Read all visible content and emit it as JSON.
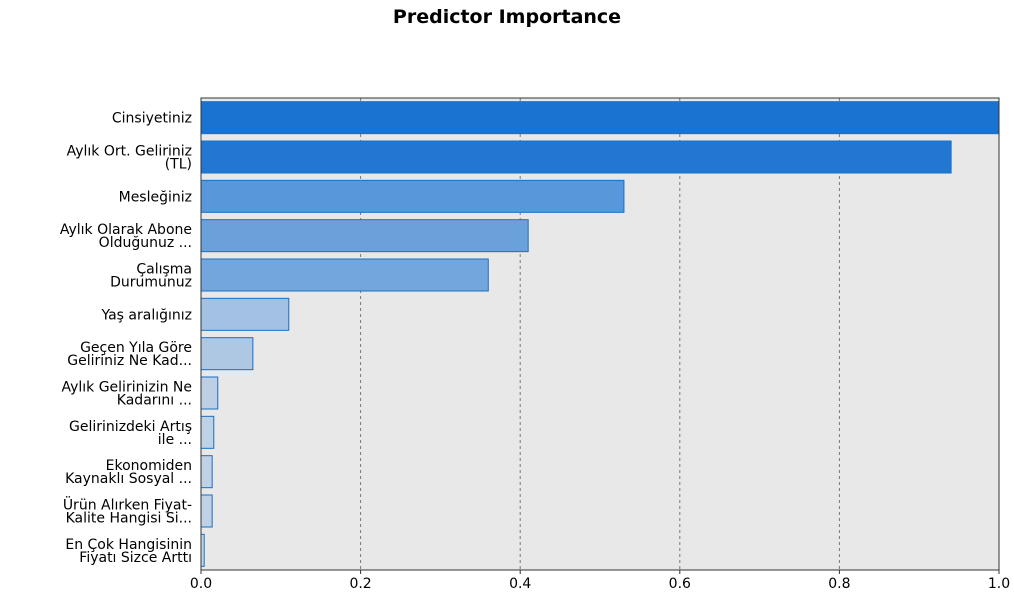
{
  "chart_data": {
    "type": "bar",
    "orientation": "horizontal",
    "title": "Predictor Importance",
    "xlabel": "",
    "ylabel": "",
    "xlim": [
      0,
      1.0
    ],
    "x_ticks": [
      "0.0",
      "0.2",
      "0.4",
      "0.6",
      "0.8",
      "1.0"
    ],
    "x_tick_values": [
      0,
      0.2,
      0.4,
      0.6,
      0.8,
      1.0
    ],
    "grid": "vertical dotted",
    "categories": [
      [
        "Cinsiyetiniz"
      ],
      [
        "Aylık Ort. Geliriniz",
        "(TL)"
      ],
      [
        "Mesleğiniz"
      ],
      [
        "Aylık Olarak Abone",
        "Olduğunuz ..."
      ],
      [
        "Çalışma",
        "Durumunuz"
      ],
      [
        "Yaş aralığınız"
      ],
      [
        "Geçen Yıla Göre",
        "Geliriniz Ne Kad..."
      ],
      [
        "Aylık Gelirinizin Ne",
        "Kadarını ..."
      ],
      [
        "Gelirinizdeki Artış",
        "ile ..."
      ],
      [
        "Ekonomiden",
        "Kaynaklı Sosyal ..."
      ],
      [
        "Ürün Alırken Fiyat-",
        "Kalite Hangisi Si..."
      ],
      [
        "En Çok Hangisinin",
        "Fiyatı Sizce Arttı"
      ]
    ],
    "values": [
      1.0,
      0.94,
      0.53,
      0.41,
      0.36,
      0.11,
      0.065,
      0.021,
      0.016,
      0.014,
      0.014,
      0.004
    ],
    "colors": {
      "plot_background": "#e8e8e8",
      "bar_stroke": "#1a6fc4",
      "grid": "#7a7a7a",
      "bar_fill_scale": [
        "#c8d6e6",
        "#1a73d1"
      ]
    }
  }
}
